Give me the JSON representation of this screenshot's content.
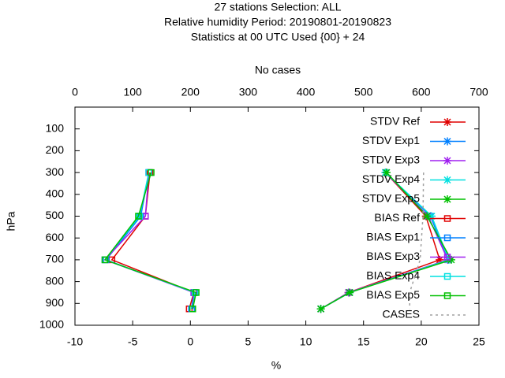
{
  "chart_data": {
    "type": "line",
    "title_lines": [
      "27 stations Selection: ALL",
      "Relative humidity  Period: 20190801-20190823",
      "Statistics at 00 UTC  Used {00} + 24"
    ],
    "xlabel": "%",
    "ylabel": "hPa",
    "x2label": "No cases",
    "xlim": [
      -10,
      25
    ],
    "xticks": [
      -10,
      -5,
      0,
      5,
      10,
      15,
      20,
      25
    ],
    "x2lim": [
      0,
      700
    ],
    "x2ticks": [
      0,
      100,
      200,
      300,
      400,
      500,
      600,
      700
    ],
    "ylim": [
      1000,
      0
    ],
    "yticks": [
      100,
      200,
      300,
      400,
      500,
      600,
      700,
      800,
      900,
      1000
    ],
    "levels": [
      300,
      500,
      700,
      850,
      925
    ],
    "legend": "top-right",
    "series": [
      {
        "name": "STDV Ref",
        "color": "#e00000",
        "marker": "star",
        "values": [
          16.9,
          20.4,
          21.6,
          13.7,
          11.3
        ]
      },
      {
        "name": "STDV Exp1",
        "color": "#0080ff",
        "marker": "star",
        "values": [
          16.9,
          20.8,
          22.3,
          13.8,
          11.3
        ]
      },
      {
        "name": "STDV Exp3",
        "color": "#a020f0",
        "marker": "star",
        "values": [
          16.9,
          20.6,
          22.3,
          13.7,
          11.3
        ]
      },
      {
        "name": "STDV Exp4",
        "color": "#00e0e0",
        "marker": "star",
        "values": [
          16.9,
          20.9,
          22.4,
          13.8,
          11.3
        ]
      },
      {
        "name": "STDV Exp5",
        "color": "#00c000",
        "marker": "star",
        "values": [
          17.0,
          20.5,
          22.6,
          13.8,
          11.3
        ]
      },
      {
        "name": "BIAS Ref",
        "color": "#e00000",
        "marker": "square",
        "values": [
          -3.5,
          -3.9,
          -6.8,
          0.3,
          -0.1
        ]
      },
      {
        "name": "BIAS Exp1",
        "color": "#0080ff",
        "marker": "square",
        "values": [
          -3.6,
          -4.3,
          -7.3,
          0.3,
          0.1
        ]
      },
      {
        "name": "BIAS Exp3",
        "color": "#a020f0",
        "marker": "square",
        "values": [
          -3.6,
          -3.9,
          -7.4,
          0.3,
          0.2
        ]
      },
      {
        "name": "BIAS Exp4",
        "color": "#00e0e0",
        "marker": "square",
        "values": [
          -3.6,
          -4.4,
          -7.4,
          0.4,
          0.2
        ]
      },
      {
        "name": "BIAS Exp5",
        "color": "#00c000",
        "marker": "square",
        "values": [
          -3.4,
          -4.5,
          -7.4,
          0.5,
          0.2
        ]
      },
      {
        "name": "CASES",
        "color": "#a0a0a0",
        "axis": "x2",
        "line_style": "dashed",
        "values": [
          604,
          603,
          598,
          580,
          580
        ]
      }
    ]
  }
}
